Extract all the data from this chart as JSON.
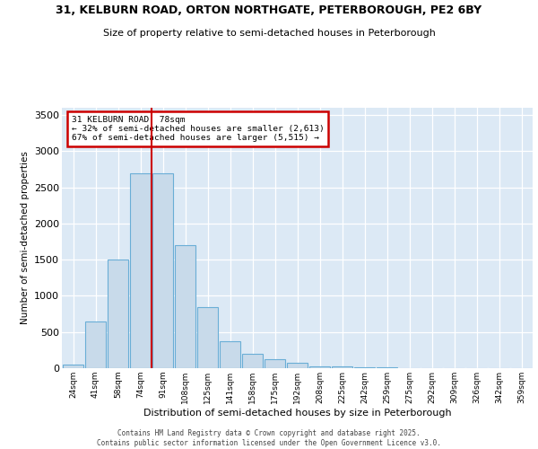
{
  "title": "31, KELBURN ROAD, ORTON NORTHGATE, PETERBOROUGH, PE2 6BY",
  "subtitle": "Size of property relative to semi-detached houses in Peterborough",
  "xlabel": "Distribution of semi-detached houses by size in Peterborough",
  "ylabel": "Number of semi-detached properties",
  "categories": [
    "24sqm",
    "41sqm",
    "58sqm",
    "74sqm",
    "91sqm",
    "108sqm",
    "125sqm",
    "141sqm",
    "158sqm",
    "175sqm",
    "192sqm",
    "208sqm",
    "225sqm",
    "242sqm",
    "259sqm",
    "275sqm",
    "292sqm",
    "309sqm",
    "326sqm",
    "342sqm",
    "359sqm"
  ],
  "values": [
    50,
    650,
    1500,
    2700,
    2700,
    1700,
    850,
    375,
    200,
    130,
    75,
    30,
    25,
    15,
    10,
    5,
    5,
    5,
    5,
    3,
    2
  ],
  "bar_color": "#c8daea",
  "bar_edge_color": "#6aaed6",
  "bar_edge_width": 0.8,
  "red_line_x": 3.5,
  "red_line_color": "#cc0000",
  "annotation_title": "31 KELBURN ROAD: 78sqm",
  "annotation_line2": "← 32% of semi-detached houses are smaller (2,613)",
  "annotation_line3": "67% of semi-detached houses are larger (5,515) →",
  "annotation_box_edgecolor": "#cc0000",
  "ylim": [
    0,
    3600
  ],
  "yticks": [
    0,
    500,
    1000,
    1500,
    2000,
    2500,
    3000,
    3500
  ],
  "background_color": "#dce9f5",
  "grid_color": "#ffffff",
  "fig_background": "#ffffff",
  "footer_line1": "Contains HM Land Registry data © Crown copyright and database right 2025.",
  "footer_line2": "Contains public sector information licensed under the Open Government Licence v3.0."
}
